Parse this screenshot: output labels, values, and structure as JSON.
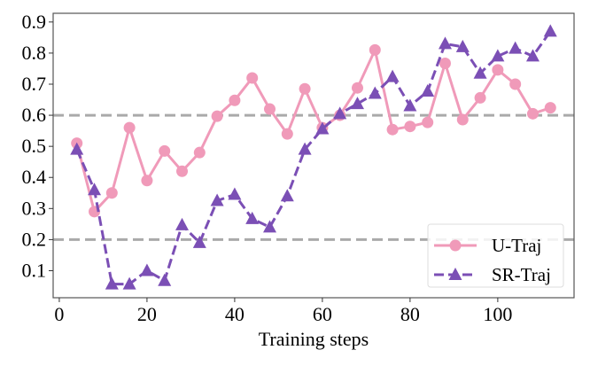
{
  "chart_data": {
    "type": "line",
    "title": "",
    "xlabel": "Training steps",
    "ylabel": "",
    "xlim": [
      -1.4,
      117.4
    ],
    "ylim": [
      0.013,
      0.928
    ],
    "xticks": [
      0,
      20,
      40,
      60,
      80,
      100
    ],
    "yticks": [
      0.1,
      0.2,
      0.3,
      0.4,
      0.5,
      0.6,
      0.7,
      0.8,
      0.9
    ],
    "grid": false,
    "reference_lines": [
      0.6,
      0.2
    ],
    "reference_line_color": "#aaaaaa",
    "legend_position": "lower-right",
    "x": [
      4,
      8,
      12,
      16,
      20,
      24,
      28,
      32,
      36,
      40,
      44,
      48,
      52,
      56,
      60,
      64,
      68,
      72,
      76,
      80,
      84,
      88,
      92,
      96,
      100,
      104,
      108,
      112
    ],
    "series": [
      {
        "name": "U-Traj",
        "color": "#f09ab9",
        "marker": "circle",
        "linestyle": "solid",
        "values": [
          0.51,
          0.29,
          0.35,
          0.56,
          0.39,
          0.485,
          0.42,
          0.48,
          0.597,
          0.648,
          0.72,
          0.62,
          0.54,
          0.685,
          0.56,
          0.6,
          0.688,
          0.81,
          0.554,
          0.564,
          0.577,
          0.767,
          0.586,
          0.656,
          0.746,
          0.7,
          0.605,
          0.624
        ]
      },
      {
        "name": "SR-Traj",
        "color": "#7b4fb5",
        "marker": "triangle",
        "linestyle": "dashed",
        "values": [
          0.49,
          0.36,
          0.057,
          0.057,
          0.1,
          0.068,
          0.247,
          0.19,
          0.325,
          0.345,
          0.267,
          0.24,
          0.34,
          0.49,
          0.556,
          0.605,
          0.637,
          0.67,
          0.724,
          0.63,
          0.677,
          0.83,
          0.82,
          0.735,
          0.79,
          0.815,
          0.79,
          0.87
        ]
      }
    ]
  }
}
